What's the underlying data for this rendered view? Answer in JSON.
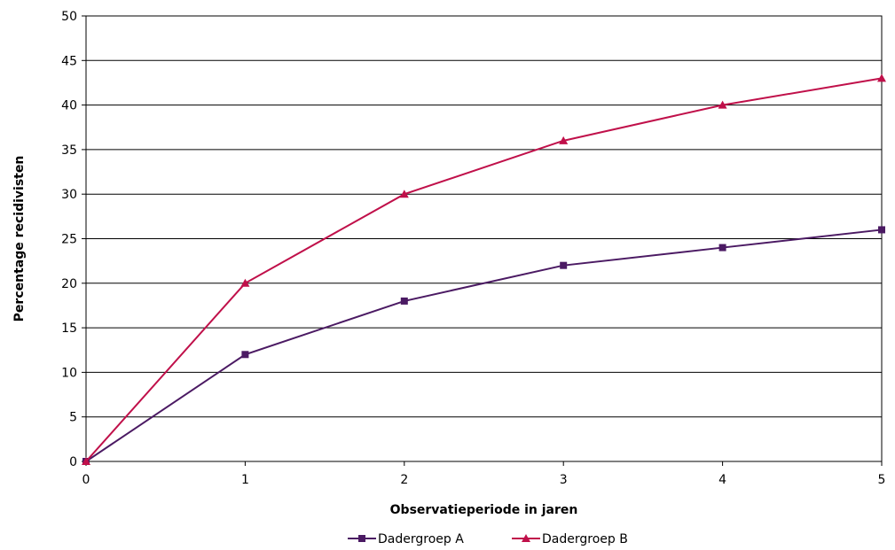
{
  "chart_data": {
    "type": "line",
    "title": "",
    "xlabel": "Observatieperiode in jaren",
    "ylabel": "Percentage recidivisten",
    "x": [
      0,
      1,
      2,
      3,
      4,
      5
    ],
    "x_ticks": [
      "0",
      "1",
      "2",
      "3",
      "4",
      "5"
    ],
    "xlim": [
      0,
      5
    ],
    "ylim": [
      0,
      50
    ],
    "y_ticks": [
      "0",
      "5",
      "10",
      "15",
      "20",
      "25",
      "30",
      "35",
      "40",
      "45",
      "50"
    ],
    "y_tick_values": [
      0,
      5,
      10,
      15,
      20,
      25,
      30,
      35,
      40,
      45,
      50
    ],
    "grid": "horizontal",
    "legend_position": "bottom",
    "series": [
      {
        "name": "Dadergroep A",
        "values": [
          0,
          12,
          18,
          22,
          24,
          26
        ],
        "color": "#4b1a63",
        "marker": "square"
      },
      {
        "name": "Dadergroep B",
        "values": [
          0,
          20,
          30,
          36,
          40,
          43
        ],
        "color": "#c0104a",
        "marker": "triangle"
      }
    ]
  }
}
